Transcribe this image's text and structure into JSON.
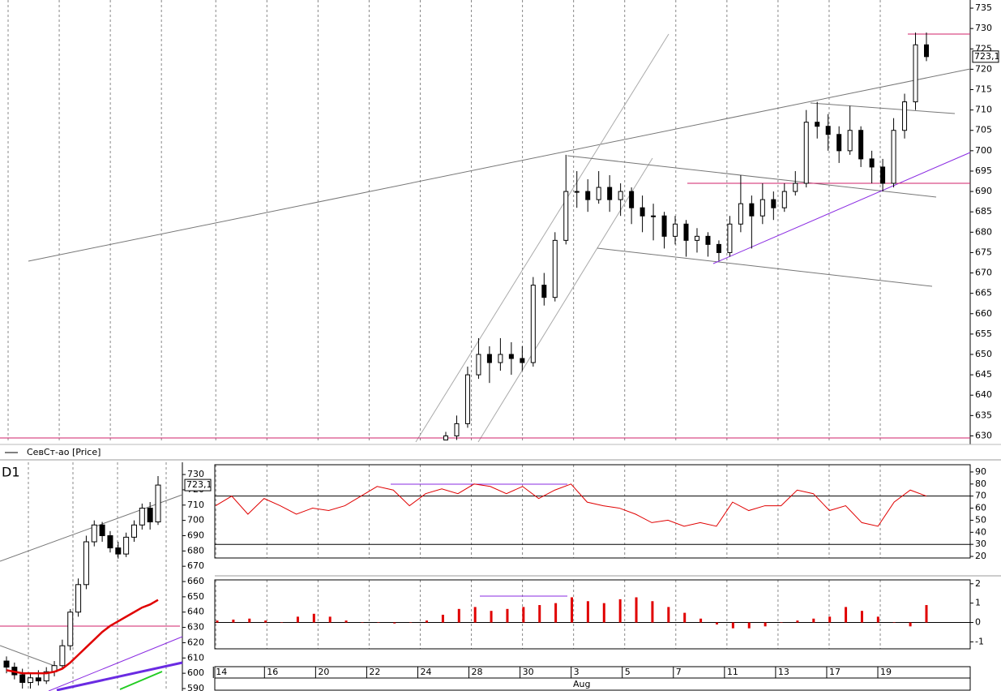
{
  "chart_data": [
    {
      "type": "candlestick",
      "legend": "СевСт-ао [Price]",
      "open": [
        629,
        630,
        633,
        645,
        650,
        648,
        650,
        649,
        648,
        667,
        664,
        678,
        690,
        690,
        688,
        691,
        688,
        690,
        686,
        684,
        684,
        679,
        682,
        678,
        679,
        677,
        675,
        682,
        687,
        684,
        688,
        686,
        690,
        692,
        707,
        706,
        704,
        700,
        705,
        698,
        696,
        692,
        705,
        712,
        726
      ],
      "high": [
        631,
        635,
        647,
        654,
        652,
        654,
        653,
        652,
        669,
        670,
        680,
        699,
        695,
        693,
        695,
        694,
        692,
        691,
        689,
        687,
        685,
        684,
        683,
        681,
        680,
        678,
        684,
        694,
        689,
        692,
        690,
        692,
        695,
        710,
        712,
        709,
        706,
        711,
        706,
        700,
        698,
        708,
        714,
        729,
        729
      ],
      "low": [
        629,
        629,
        632,
        644,
        643,
        646,
        645,
        646,
        647,
        662,
        663,
        677,
        686,
        685,
        687,
        685,
        684,
        682,
        680,
        678,
        676,
        677,
        674,
        675,
        674,
        673,
        674,
        680,
        676,
        682,
        683,
        685,
        689,
        691,
        703,
        700,
        697,
        699,
        696,
        692,
        690,
        691,
        703,
        710,
        722
      ],
      "close": [
        630,
        633,
        645,
        650,
        648,
        650,
        649,
        648,
        667,
        664,
        678,
        690,
        690,
        688,
        691,
        688,
        690,
        686,
        684,
        684,
        679,
        682,
        678,
        679,
        677,
        675,
        682,
        687,
        684,
        688,
        686,
        690,
        692,
        707,
        706,
        704,
        700,
        705,
        698,
        696,
        692,
        705,
        712,
        726,
        723.1
      ],
      "color_up": "#ffffff",
      "color_down": "#000000",
      "ylim": [
        628.5,
        737
      ],
      "yticks": [
        630,
        635,
        640,
        645,
        650,
        655,
        660,
        665,
        670,
        675,
        680,
        685,
        690,
        695,
        700,
        705,
        710,
        715,
        720,
        725,
        730,
        735
      ],
      "price_label": {
        "value": 723.1,
        "label": "723,1"
      }
    },
    {
      "type": "candlestick",
      "title": "D1",
      "open": [
        608,
        604,
        599,
        594,
        597,
        595,
        601,
        605,
        618,
        640,
        658,
        686,
        697,
        690,
        682,
        678,
        689,
        697,
        708,
        699
      ],
      "high": [
        611,
        607,
        603,
        600,
        602,
        604,
        608,
        622,
        642,
        662,
        690,
        700,
        699,
        693,
        686,
        692,
        700,
        711,
        712,
        729
      ],
      "low": [
        600,
        596,
        590,
        590,
        592,
        593,
        598,
        603,
        615,
        637,
        655,
        683,
        686,
        679,
        675,
        676,
        686,
        694,
        694,
        697
      ],
      "close": [
        604,
        599,
        594,
        597,
        595,
        601,
        605,
        618,
        640,
        658,
        686,
        697,
        690,
        682,
        678,
        689,
        697,
        708,
        699,
        723.1
      ],
      "color_up": "#ffffff",
      "color_down": "#000000",
      "ma": {
        "color": "#e00000",
        "values": [
          602,
          601,
          600,
          600,
          600,
          600,
          601,
          603,
          607,
          612,
          617,
          622,
          627,
          631,
          634,
          637,
          640,
          643,
          645,
          648
        ]
      },
      "ylim": [
        588.4,
        738
      ],
      "yticks": [
        590,
        600,
        610,
        620,
        630,
        640,
        650,
        660,
        670,
        680,
        690,
        700,
        710,
        720,
        730
      ],
      "price_label": {
        "value": 723.1,
        "label": "723,1"
      }
    },
    {
      "type": "line",
      "color": "#e00000",
      "values": [
        62,
        70,
        55,
        68,
        62,
        55,
        60,
        58,
        62,
        70,
        78,
        75,
        62,
        72,
        76,
        72,
        80,
        78,
        72,
        78,
        68,
        75,
        80,
        65,
        62,
        60,
        55,
        48,
        50,
        45,
        48,
        45,
        65,
        58,
        62,
        62,
        75,
        72,
        58,
        62,
        48,
        45,
        65,
        75,
        70
      ],
      "levels": [
        30,
        70
      ],
      "ylim": [
        18.7,
        96
      ],
      "yticks": [
        20,
        30,
        40,
        50,
        60,
        70,
        80,
        90
      ]
    },
    {
      "type": "bar",
      "color": "#e00000",
      "values": [
        0.1,
        0.15,
        0.2,
        0.1,
        0,
        0.3,
        0.45,
        0.3,
        0.1,
        0,
        0,
        -0.05,
        0,
        0.1,
        0.4,
        0.7,
        0.8,
        0.6,
        0.7,
        0.8,
        0.9,
        1.0,
        1.3,
        1.1,
        1.0,
        1.2,
        1.3,
        1.1,
        0.8,
        0.5,
        0.2,
        -0.1,
        -0.3,
        -0.3,
        -0.2,
        0,
        0.1,
        0.2,
        0.3,
        0.8,
        0.6,
        0.3,
        0,
        -0.2,
        0.9
      ],
      "ylim": [
        -1.36,
        2.2
      ],
      "yticks": [
        -1,
        0,
        1,
        2
      ],
      "x_labels": [
        "14",
        "16",
        "20",
        "22",
        "24",
        "28",
        "30",
        "3",
        "5",
        "7",
        "11",
        "13",
        "17",
        "19"
      ],
      "x_month": "Aug"
    }
  ]
}
